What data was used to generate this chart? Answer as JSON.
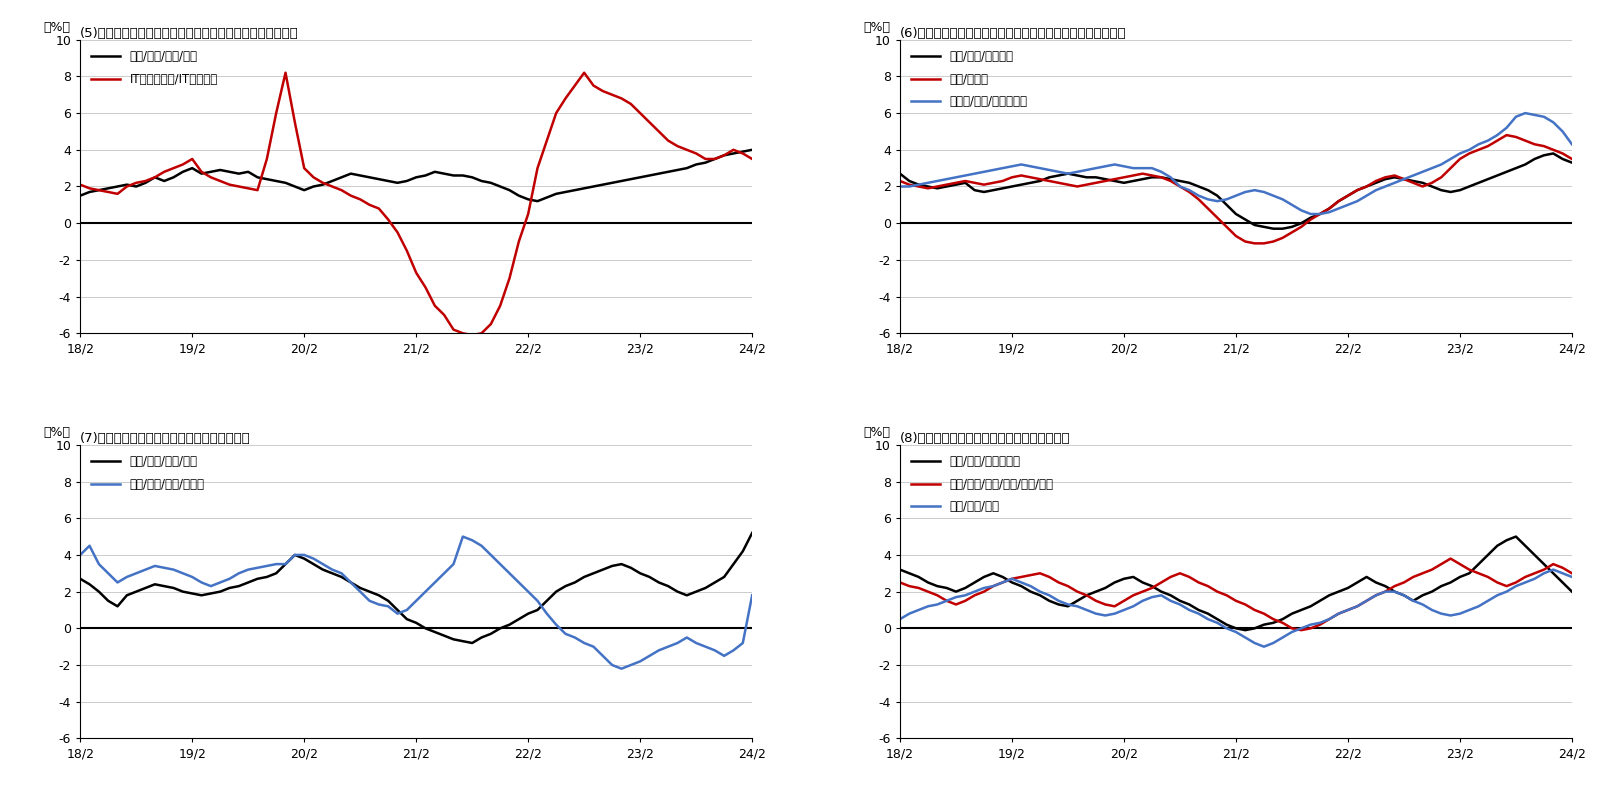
{
  "title5": "(5)募集賃金指数職種別（前年同期比）ホワイトカラー職種",
  "title6": "(6)募集賃金指数指数職種別（前年同期比）対面サービス職種",
  "title7": "(7)募集賃金指数職種別（前年同期比）製造業",
  "title8": "(8)募集賃金指数職種別（前年同期比）その他",
  "ylabel": "（%）",
  "ylim": [
    -6,
    10
  ],
  "yticks": [
    -6,
    -4,
    -2,
    0,
    2,
    4,
    6,
    8,
    10
  ],
  "xtick_labels": [
    "18/2",
    "19/2",
    "20/2",
    "21/2",
    "22/2",
    "23/2",
    "24/2"
  ],
  "legend5": [
    "営業/事務/企画/管理",
    "ITエンジニア/IT系専門職"
  ],
  "legend6": [
    "販売/接客/サービス",
    "飲食/フード",
    "ホテル/旅館/ブライダル"
  ],
  "legend7": [
    "製造/工場/化学/食品",
    "電気/電子/機械/自動車"
  ],
  "legend8": [
    "建設/土木/エネルギー",
    "運輸/物流/配送/警備/作業/調査",
    "医療/医薬/福祉"
  ],
  "colors5": [
    "#000000",
    "#c00000"
  ],
  "colors6": [
    "#000000",
    "#c00000",
    "#4472c4"
  ],
  "colors7": [
    "#000000",
    "#4472c4"
  ],
  "colors8": [
    "#000000",
    "#c00000",
    "#4472c4"
  ],
  "n_points": 73,
  "p5_black": [
    1.5,
    1.7,
    1.8,
    1.9,
    2.0,
    2.1,
    2.0,
    2.2,
    2.5,
    2.3,
    2.5,
    2.8,
    3.0,
    2.7,
    2.8,
    2.9,
    2.8,
    2.7,
    2.8,
    2.5,
    2.4,
    2.3,
    2.2,
    2.0,
    1.8,
    2.0,
    2.1,
    2.3,
    2.5,
    2.7,
    2.6,
    2.5,
    2.4,
    2.3,
    2.2,
    2.3,
    2.5,
    2.6,
    2.8,
    2.7,
    2.6,
    2.6,
    2.5,
    2.3,
    2.2,
    2.0,
    1.8,
    1.5,
    1.3,
    1.2,
    1.4,
    1.6,
    1.7,
    1.8,
    1.9,
    2.0,
    2.1,
    2.2,
    2.3,
    2.4,
    2.5,
    2.6,
    2.7,
    2.8,
    2.9,
    3.0,
    3.2,
    3.3,
    3.5,
    3.7,
    3.8,
    3.9,
    4.0
  ],
  "p5_red": [
    2.1,
    1.9,
    1.8,
    1.7,
    1.6,
    2.0,
    2.2,
    2.3,
    2.5,
    2.8,
    3.0,
    3.2,
    3.5,
    2.8,
    2.5,
    2.3,
    2.1,
    2.0,
    1.9,
    1.8,
    3.5,
    6.0,
    8.2,
    5.5,
    3.0,
    2.5,
    2.2,
    2.0,
    1.8,
    1.5,
    1.3,
    1.0,
    0.8,
    0.2,
    -0.5,
    -1.5,
    -2.7,
    -3.5,
    -4.5,
    -5.0,
    -5.8,
    -6.0,
    -6.1,
    -6.0,
    -5.5,
    -4.5,
    -3.0,
    -1.0,
    0.5,
    3.0,
    4.5,
    6.0,
    6.8,
    7.5,
    8.2,
    7.5,
    7.2,
    7.0,
    6.8,
    6.5,
    6.0,
    5.5,
    5.0,
    4.5,
    4.2,
    4.0,
    3.8,
    3.5,
    3.5,
    3.7,
    4.0,
    3.8,
    3.5
  ],
  "p6_black": [
    2.7,
    2.3,
    2.1,
    2.0,
    1.9,
    2.0,
    2.1,
    2.2,
    1.8,
    1.7,
    1.8,
    1.9,
    2.0,
    2.1,
    2.2,
    2.3,
    2.5,
    2.6,
    2.7,
    2.6,
    2.5,
    2.5,
    2.4,
    2.3,
    2.2,
    2.3,
    2.4,
    2.5,
    2.5,
    2.4,
    2.3,
    2.2,
    2.0,
    1.8,
    1.5,
    1.0,
    0.5,
    0.2,
    -0.1,
    -0.2,
    -0.3,
    -0.3,
    -0.2,
    0.0,
    0.3,
    0.5,
    0.8,
    1.2,
    1.5,
    1.8,
    2.0,
    2.2,
    2.4,
    2.5,
    2.4,
    2.3,
    2.2,
    2.0,
    1.8,
    1.7,
    1.8,
    2.0,
    2.2,
    2.4,
    2.6,
    2.8,
    3.0,
    3.2,
    3.5,
    3.7,
    3.8,
    3.5,
    3.3
  ],
  "p6_red": [
    2.3,
    2.1,
    2.0,
    1.9,
    2.0,
    2.1,
    2.2,
    2.3,
    2.2,
    2.1,
    2.2,
    2.3,
    2.5,
    2.6,
    2.5,
    2.4,
    2.3,
    2.2,
    2.1,
    2.0,
    2.1,
    2.2,
    2.3,
    2.4,
    2.5,
    2.6,
    2.7,
    2.6,
    2.5,
    2.3,
    2.0,
    1.7,
    1.3,
    0.8,
    0.3,
    -0.2,
    -0.7,
    -1.0,
    -1.1,
    -1.1,
    -1.0,
    -0.8,
    -0.5,
    -0.2,
    0.2,
    0.5,
    0.8,
    1.2,
    1.5,
    1.8,
    2.0,
    2.3,
    2.5,
    2.6,
    2.4,
    2.2,
    2.0,
    2.2,
    2.5,
    3.0,
    3.5,
    3.8,
    4.0,
    4.2,
    4.5,
    4.8,
    4.7,
    4.5,
    4.3,
    4.2,
    4.0,
    3.8,
    3.5
  ],
  "p6_blue": [
    2.0,
    2.0,
    2.1,
    2.2,
    2.3,
    2.4,
    2.5,
    2.6,
    2.7,
    2.8,
    2.9,
    3.0,
    3.1,
    3.2,
    3.1,
    3.0,
    2.9,
    2.8,
    2.7,
    2.8,
    2.9,
    3.0,
    3.1,
    3.2,
    3.1,
    3.0,
    3.0,
    3.0,
    2.8,
    2.5,
    2.0,
    1.8,
    1.5,
    1.3,
    1.2,
    1.3,
    1.5,
    1.7,
    1.8,
    1.7,
    1.5,
    1.3,
    1.0,
    0.7,
    0.5,
    0.5,
    0.6,
    0.8,
    1.0,
    1.2,
    1.5,
    1.8,
    2.0,
    2.2,
    2.4,
    2.6,
    2.8,
    3.0,
    3.2,
    3.5,
    3.8,
    4.0,
    4.3,
    4.5,
    4.8,
    5.2,
    5.8,
    6.0,
    5.9,
    5.8,
    5.5,
    5.0,
    4.3
  ],
  "p7_black": [
    2.7,
    2.4,
    2.0,
    1.5,
    1.2,
    1.8,
    2.0,
    2.2,
    2.4,
    2.3,
    2.2,
    2.0,
    1.9,
    1.8,
    1.9,
    2.0,
    2.2,
    2.3,
    2.5,
    2.7,
    2.8,
    3.0,
    3.5,
    4.0,
    3.8,
    3.5,
    3.2,
    3.0,
    2.8,
    2.5,
    2.2,
    2.0,
    1.8,
    1.5,
    1.0,
    0.5,
    0.3,
    0.0,
    -0.2,
    -0.4,
    -0.6,
    -0.7,
    -0.8,
    -0.5,
    -0.3,
    0.0,
    0.2,
    0.5,
    0.8,
    1.0,
    1.5,
    2.0,
    2.3,
    2.5,
    2.8,
    3.0,
    3.2,
    3.4,
    3.5,
    3.3,
    3.0,
    2.8,
    2.5,
    2.3,
    2.0,
    1.8,
    2.0,
    2.2,
    2.5,
    2.8,
    3.5,
    4.2,
    5.2
  ],
  "p7_blue": [
    4.0,
    4.5,
    3.5,
    3.0,
    2.5,
    2.8,
    3.0,
    3.2,
    3.4,
    3.3,
    3.2,
    3.0,
    2.8,
    2.5,
    2.3,
    2.5,
    2.7,
    3.0,
    3.2,
    3.3,
    3.4,
    3.5,
    3.5,
    4.0,
    4.0,
    3.8,
    3.5,
    3.2,
    3.0,
    2.5,
    2.0,
    1.5,
    1.3,
    1.2,
    0.8,
    1.0,
    1.5,
    2.0,
    2.5,
    3.0,
    3.5,
    5.0,
    4.8,
    4.5,
    4.0,
    3.5,
    3.0,
    2.5,
    2.0,
    1.5,
    0.8,
    0.2,
    -0.3,
    -0.5,
    -0.8,
    -1.0,
    -1.5,
    -2.0,
    -2.2,
    -2.0,
    -1.8,
    -1.5,
    -1.2,
    -1.0,
    -0.8,
    -0.5,
    -0.8,
    -1.0,
    -1.2,
    -1.5,
    -1.2,
    -0.8,
    1.8
  ],
  "p8_black": [
    3.2,
    3.0,
    2.8,
    2.5,
    2.3,
    2.2,
    2.0,
    2.2,
    2.5,
    2.8,
    3.0,
    2.8,
    2.5,
    2.3,
    2.0,
    1.8,
    1.5,
    1.3,
    1.2,
    1.5,
    1.8,
    2.0,
    2.2,
    2.5,
    2.7,
    2.8,
    2.5,
    2.3,
    2.0,
    1.8,
    1.5,
    1.3,
    1.0,
    0.8,
    0.5,
    0.2,
    0.0,
    -0.1,
    0.0,
    0.2,
    0.3,
    0.5,
    0.8,
    1.0,
    1.2,
    1.5,
    1.8,
    2.0,
    2.2,
    2.5,
    2.8,
    2.5,
    2.3,
    2.0,
    1.8,
    1.5,
    1.8,
    2.0,
    2.3,
    2.5,
    2.8,
    3.0,
    3.5,
    4.0,
    4.5,
    4.8,
    5.0,
    4.5,
    4.0,
    3.5,
    3.0,
    2.5,
    2.0
  ],
  "p8_red": [
    2.5,
    2.3,
    2.2,
    2.0,
    1.8,
    1.5,
    1.3,
    1.5,
    1.8,
    2.0,
    2.3,
    2.5,
    2.7,
    2.8,
    2.9,
    3.0,
    2.8,
    2.5,
    2.3,
    2.0,
    1.8,
    1.5,
    1.3,
    1.2,
    1.5,
    1.8,
    2.0,
    2.2,
    2.5,
    2.8,
    3.0,
    2.8,
    2.5,
    2.3,
    2.0,
    1.8,
    1.5,
    1.3,
    1.0,
    0.8,
    0.5,
    0.3,
    0.0,
    -0.1,
    0.0,
    0.2,
    0.5,
    0.8,
    1.0,
    1.2,
    1.5,
    1.8,
    2.0,
    2.3,
    2.5,
    2.8,
    3.0,
    3.2,
    3.5,
    3.8,
    3.5,
    3.2,
    3.0,
    2.8,
    2.5,
    2.3,
    2.5,
    2.8,
    3.0,
    3.2,
    3.5,
    3.3,
    3.0
  ],
  "p8_blue": [
    0.5,
    0.8,
    1.0,
    1.2,
    1.3,
    1.5,
    1.7,
    1.8,
    2.0,
    2.2,
    2.3,
    2.5,
    2.7,
    2.5,
    2.3,
    2.0,
    1.8,
    1.5,
    1.3,
    1.2,
    1.0,
    0.8,
    0.7,
    0.8,
    1.0,
    1.2,
    1.5,
    1.7,
    1.8,
    1.5,
    1.3,
    1.0,
    0.8,
    0.5,
    0.3,
    0.0,
    -0.2,
    -0.5,
    -0.8,
    -1.0,
    -0.8,
    -0.5,
    -0.2,
    0.0,
    0.2,
    0.3,
    0.5,
    0.8,
    1.0,
    1.2,
    1.5,
    1.8,
    2.0,
    2.0,
    1.8,
    1.5,
    1.3,
    1.0,
    0.8,
    0.7,
    0.8,
    1.0,
    1.2,
    1.5,
    1.8,
    2.0,
    2.3,
    2.5,
    2.7,
    3.0,
    3.2,
    3.0,
    2.8
  ]
}
